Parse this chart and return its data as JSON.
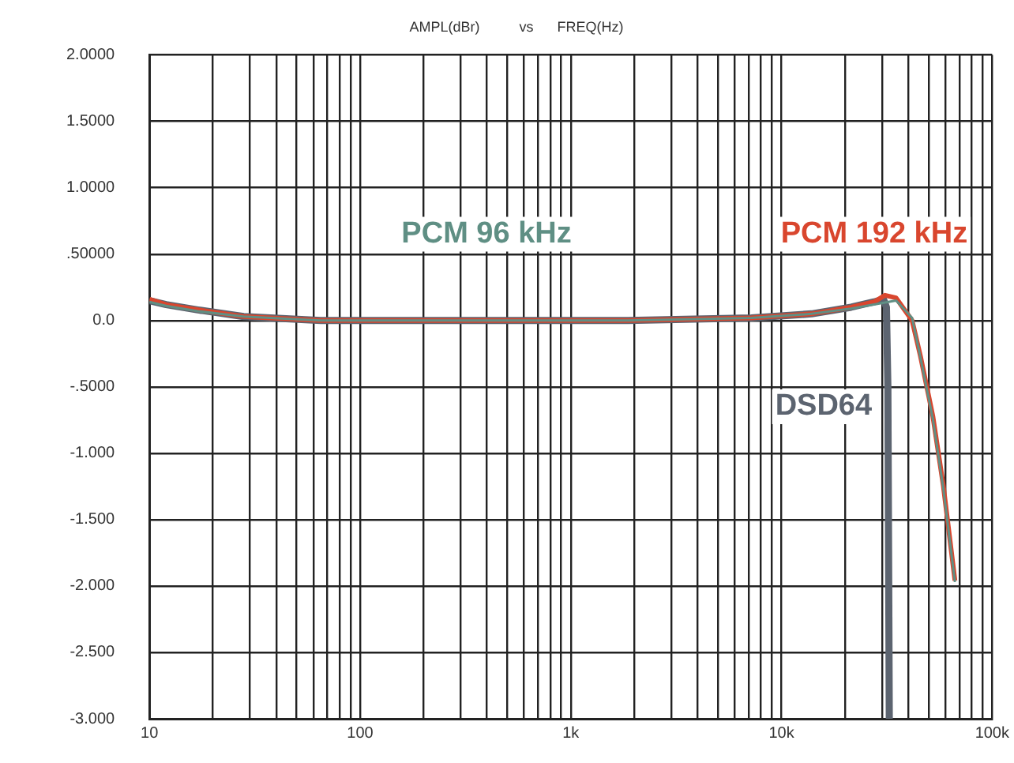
{
  "chart_data": {
    "type": "line",
    "title": "AMPL(dBr)          vs      FREQ(Hz)",
    "series": [
      {
        "name": "PCM 96 kHz",
        "color": "#5f8f84",
        "x": [
          10,
          12,
          17,
          28,
          65,
          350,
          1870,
          7200,
          13900,
          21400,
          27500,
          35000,
          41700,
          45700,
          52300,
          58600,
          66600
        ],
        "values": [
          0.14,
          0.11,
          0.07,
          0.03,
          0.0,
          0.0,
          0.0,
          0.02,
          0.05,
          0.09,
          0.12,
          0.15,
          0.02,
          -0.28,
          -0.74,
          -1.26,
          -1.97
        ]
      },
      {
        "name": "PCM 192 kHz",
        "color": "#d9462e",
        "x": [
          10,
          12,
          17,
          28,
          65,
          350,
          1870,
          7200,
          13900,
          21400,
          27500,
          31000,
          35000,
          41700,
          45700,
          52300,
          58600,
          66600
        ],
        "values": [
          0.16,
          0.12,
          0.08,
          0.03,
          0.0,
          0.0,
          0.0,
          0.02,
          0.05,
          0.1,
          0.14,
          0.19,
          0.17,
          0.0,
          -0.27,
          -0.72,
          -1.24,
          -1.96
        ]
      },
      {
        "name": "DSD64",
        "color": "#5c6470",
        "x": [
          10,
          12,
          17,
          28,
          65,
          350,
          1870,
          7200,
          13900,
          21400,
          27500,
          30500,
          31500,
          32000,
          32500
        ],
        "values": [
          0.15,
          0.12,
          0.08,
          0.03,
          0.0,
          0.0,
          0.0,
          0.02,
          0.05,
          0.1,
          0.14,
          0.16,
          0.1,
          -0.5,
          -3.0
        ]
      }
    ],
    "xlim": [
      10,
      100000
    ],
    "ylim": [
      -3,
      2
    ],
    "log": "x",
    "xticks": [
      10,
      {
        "value": 20,
        "label": null
      },
      {
        "value": 30,
        "label": null
      },
      {
        "value": 40,
        "label": null
      },
      {
        "value": 50,
        "label": null
      },
      {
        "value": 60,
        "label": null
      },
      {
        "value": 70,
        "label": null
      },
      {
        "value": 80,
        "label": null
      },
      {
        "value": 90,
        "label": null
      },
      100,
      {
        "value": 200,
        "label": null
      },
      {
        "value": 300,
        "label": null
      },
      {
        "value": 400,
        "label": null
      },
      {
        "value": 500,
        "label": null
      },
      {
        "value": 600,
        "label": null
      },
      {
        "value": 700,
        "label": null
      },
      {
        "value": 800,
        "label": null
      },
      {
        "value": 900,
        "label": null
      },
      {
        "value": 1000,
        "label": "1k"
      },
      {
        "value": 2000,
        "label": null
      },
      {
        "value": 3000,
        "label": null
      },
      {
        "value": 4000,
        "label": null
      },
      {
        "value": 5000,
        "label": null
      },
      {
        "value": 6000,
        "label": null
      },
      {
        "value": 7000,
        "label": null
      },
      {
        "value": 8000,
        "label": null
      },
      {
        "value": 9000,
        "label": null
      },
      {
        "value": 10000,
        "label": "10k"
      },
      {
        "value": 20000,
        "label": null
      },
      {
        "value": 30000,
        "label": null
      },
      {
        "value": 40000,
        "label": null
      },
      {
        "value": 50000,
        "label": null
      },
      {
        "value": 60000,
        "label": null
      },
      {
        "value": 70000,
        "label": null
      },
      {
        "value": 80000,
        "label": null
      },
      {
        "value": 90000,
        "label": null
      },
      {
        "value": 100000,
        "label": "100k"
      }
    ],
    "yticks": [
      {
        "value": 2,
        "label": "2.0000"
      },
      {
        "value": 1.5,
        "label": "1.5000"
      },
      {
        "value": 1,
        "label": "1.0000"
      },
      {
        "value": 0.5,
        "label": ".50000"
      },
      {
        "value": 0,
        "label": "0.0"
      },
      {
        "value": -0.5,
        "label": "-.5000"
      },
      {
        "value": -1,
        "label": "-1.000"
      },
      {
        "value": -1.5,
        "label": "-1.500"
      },
      {
        "value": -2,
        "label": "-2.000"
      },
      {
        "value": -2.5,
        "label": "-2.500"
      },
      {
        "value": -3,
        "label": "-3.000"
      }
    ],
    "grid": true,
    "legend": false,
    "marker": "none",
    "line_style": "solid"
  }
}
